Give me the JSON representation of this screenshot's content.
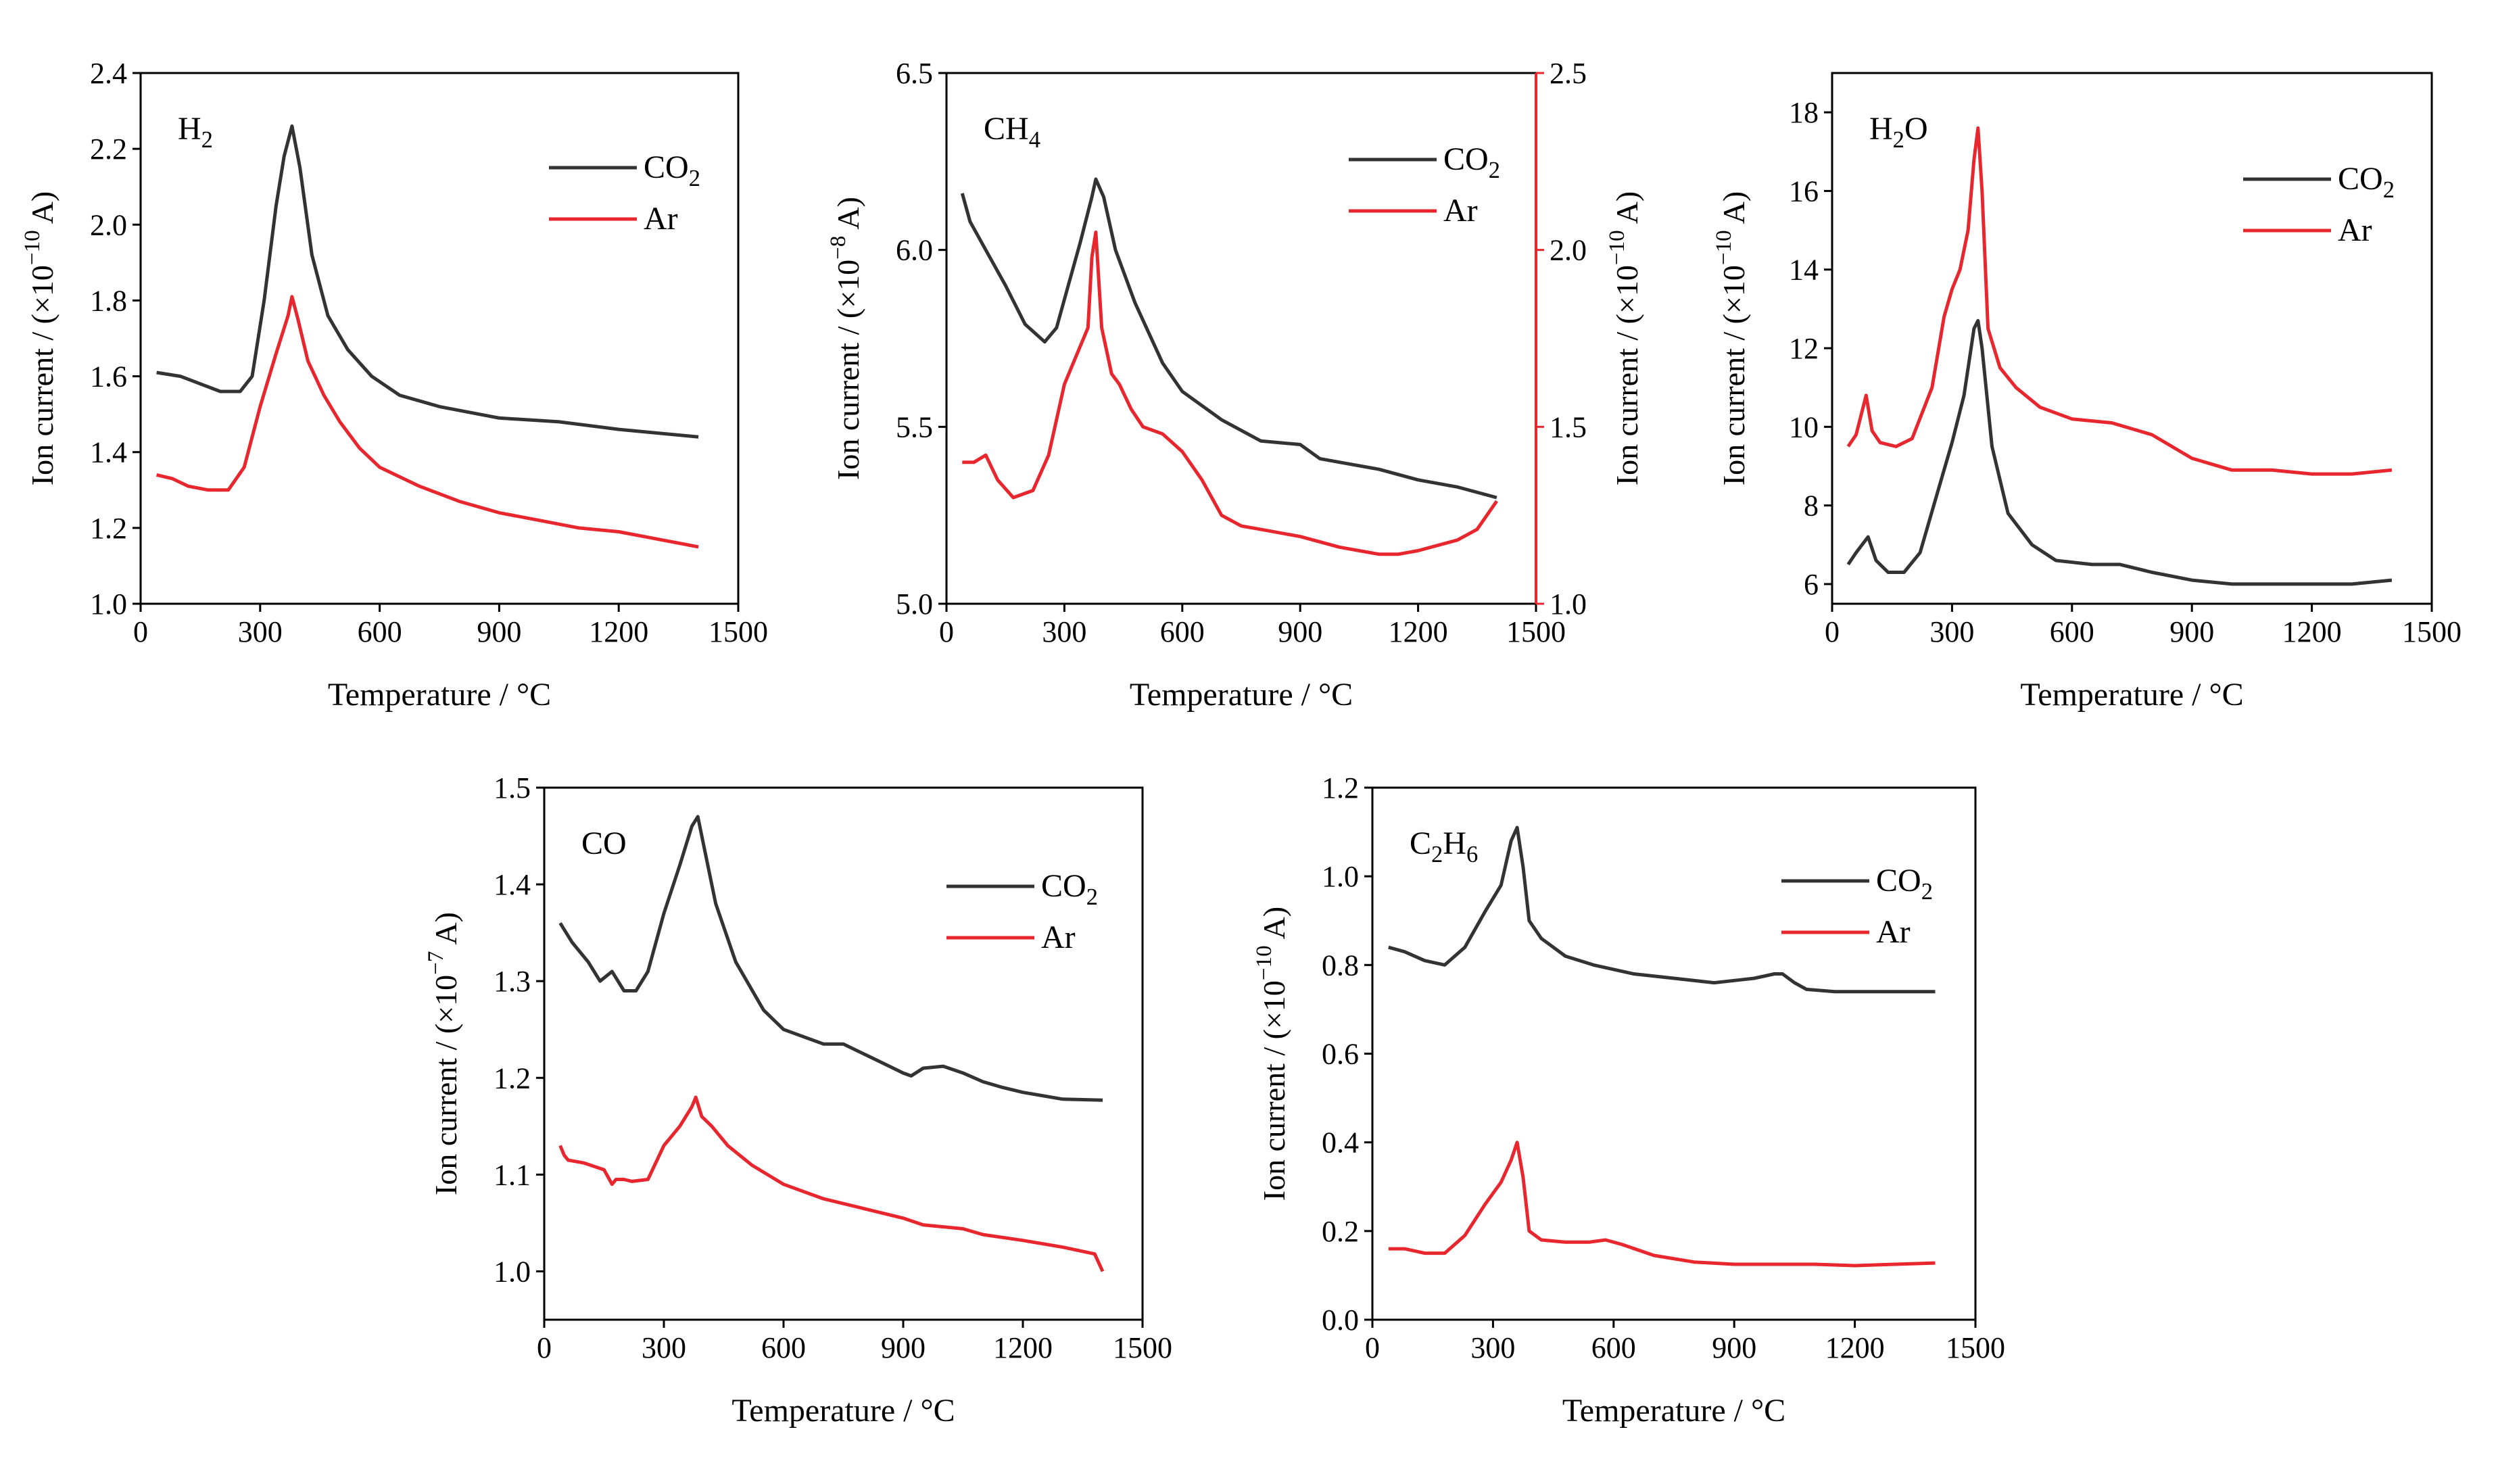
{
  "figure": {
    "xlabel": "Temperature / °C",
    "legend_labels": [
      "CO2",
      "Ar"
    ],
    "colors": {
      "co2": "#333333",
      "ar": "#e8262d",
      "axis": "#000000"
    }
  },
  "chart_data": [
    {
      "type": "line",
      "annotation": "H2",
      "xlabel": "Temperature / °C",
      "ylabel": "Ion current / (×10^-10 A)",
      "xlim": [
        0,
        1500
      ],
      "ylim": [
        1.0,
        2.4
      ],
      "xticks": [
        0,
        300,
        600,
        900,
        1200,
        1500
      ],
      "yticks": [
        1.0,
        1.2,
        1.4,
        1.6,
        1.8,
        2.0,
        2.2,
        2.4
      ],
      "legend": "top-right",
      "series": [
        {
          "name": "CO2",
          "x": [
            40,
            100,
            150,
            200,
            250,
            280,
            310,
            340,
            360,
            380,
            400,
            430,
            470,
            520,
            580,
            650,
            750,
            900,
            1050,
            1200,
            1400
          ],
          "y": [
            1.61,
            1.6,
            1.58,
            1.56,
            1.56,
            1.6,
            1.8,
            2.05,
            2.18,
            2.26,
            2.15,
            1.92,
            1.76,
            1.67,
            1.6,
            1.55,
            1.52,
            1.49,
            1.48,
            1.46,
            1.44
          ]
        },
        {
          "name": "Ar",
          "x": [
            40,
            80,
            120,
            170,
            220,
            260,
            300,
            340,
            370,
            380,
            395,
            420,
            460,
            500,
            550,
            600,
            700,
            800,
            900,
            1000,
            1100,
            1200,
            1300,
            1400
          ],
          "y": [
            1.34,
            1.33,
            1.31,
            1.3,
            1.3,
            1.36,
            1.52,
            1.66,
            1.76,
            1.81,
            1.75,
            1.64,
            1.55,
            1.48,
            1.41,
            1.36,
            1.31,
            1.27,
            1.24,
            1.22,
            1.2,
            1.19,
            1.17,
            1.15
          ]
        }
      ]
    },
    {
      "type": "line",
      "annotation": "CH4",
      "xlabel": "Temperature / °C",
      "ylabel": "Ion current / (×10^-8 A)",
      "y2label": "Ion current / (×10^-10 A)",
      "xlim": [
        0,
        1500
      ],
      "ylim": [
        5.0,
        6.5
      ],
      "y2lim": [
        1.0,
        2.5
      ],
      "xticks": [
        0,
        300,
        600,
        900,
        1200,
        1500
      ],
      "yticks": [
        5.0,
        5.5,
        6.0,
        6.5
      ],
      "y2ticks": [
        1.0,
        1.5,
        2.0,
        2.5
      ],
      "legend": "top-right",
      "series": [
        {
          "name": "CO2",
          "axis": "left",
          "x": [
            40,
            60,
            100,
            150,
            200,
            250,
            280,
            310,
            340,
            370,
            380,
            400,
            430,
            480,
            550,
            600,
            700,
            800,
            900,
            950,
            1000,
            1100,
            1200,
            1300,
            1400
          ],
          "y": [
            6.16,
            6.08,
            6.0,
            5.9,
            5.79,
            5.74,
            5.78,
            5.9,
            6.02,
            6.15,
            6.2,
            6.15,
            6.0,
            5.85,
            5.68,
            5.6,
            5.52,
            5.46,
            5.45,
            5.41,
            5.4,
            5.38,
            5.35,
            5.33,
            5.3
          ]
        },
        {
          "name": "Ar",
          "axis": "right",
          "x": [
            40,
            70,
            100,
            130,
            170,
            220,
            260,
            300,
            330,
            360,
            370,
            380,
            395,
            420,
            440,
            470,
            500,
            550,
            600,
            650,
            700,
            750,
            800,
            900,
            1000,
            1100,
            1150,
            1200,
            1300,
            1350,
            1400
          ],
          "y": [
            1.4,
            1.4,
            1.42,
            1.35,
            1.3,
            1.32,
            1.42,
            1.62,
            1.7,
            1.78,
            1.98,
            2.05,
            1.78,
            1.65,
            1.62,
            1.55,
            1.5,
            1.48,
            1.43,
            1.35,
            1.25,
            1.22,
            1.21,
            1.19,
            1.16,
            1.14,
            1.14,
            1.15,
            1.18,
            1.21,
            1.29
          ]
        }
      ]
    },
    {
      "type": "line",
      "annotation": "H2O",
      "xlabel": "Temperature / °C",
      "ylabel": "Ion current / (×10^-10 A)",
      "xlim": [
        0,
        1500
      ],
      "ylim": [
        5.5,
        19
      ],
      "xticks": [
        0,
        300,
        600,
        900,
        1200,
        1500
      ],
      "yticks": [
        6,
        8,
        10,
        12,
        14,
        16,
        18
      ],
      "legend": "top-right",
      "series": [
        {
          "name": "CO2",
          "x": [
            40,
            60,
            90,
            110,
            140,
            180,
            220,
            260,
            300,
            330,
            355,
            365,
            375,
            400,
            440,
            500,
            560,
            650,
            720,
            800,
            900,
            1000,
            1100,
            1200,
            1300,
            1400
          ],
          "y": [
            6.5,
            6.8,
            7.2,
            6.6,
            6.3,
            6.3,
            6.8,
            8.2,
            9.6,
            10.8,
            12.5,
            12.7,
            12.0,
            9.5,
            7.8,
            7.0,
            6.6,
            6.5,
            6.5,
            6.3,
            6.1,
            6.0,
            6.0,
            6.0,
            6.0,
            6.1
          ]
        },
        {
          "name": "Ar",
          "x": [
            40,
            60,
            85,
            100,
            120,
            160,
            200,
            250,
            280,
            300,
            320,
            340,
            355,
            365,
            375,
            390,
            420,
            460,
            520,
            600,
            700,
            800,
            900,
            1000,
            1100,
            1200,
            1300,
            1400
          ],
          "y": [
            9.5,
            9.8,
            10.8,
            9.9,
            9.6,
            9.5,
            9.7,
            11.0,
            12.8,
            13.5,
            14.0,
            15.0,
            16.8,
            17.6,
            16.0,
            12.5,
            11.5,
            11.0,
            10.5,
            10.2,
            10.1,
            9.8,
            9.2,
            8.9,
            8.9,
            8.8,
            8.8,
            8.9
          ]
        }
      ]
    },
    {
      "type": "line",
      "annotation": "CO",
      "xlabel": "Temperature / °C",
      "ylabel": "Ion current / (×10^-7 A)",
      "xlim": [
        0,
        1500
      ],
      "ylim": [
        0.95,
        1.5
      ],
      "xticks": [
        0,
        300,
        600,
        900,
        1200,
        1500
      ],
      "yticks": [
        1.0,
        1.1,
        1.2,
        1.3,
        1.4,
        1.5
      ],
      "legend": "top-right",
      "series": [
        {
          "name": "CO2",
          "x": [
            40,
            70,
            110,
            140,
            170,
            200,
            230,
            260,
            300,
            340,
            370,
            385,
            400,
            430,
            480,
            550,
            600,
            700,
            750,
            800,
            850,
            900,
            920,
            950,
            1000,
            1050,
            1100,
            1150,
            1200,
            1300,
            1400
          ],
          "y": [
            1.36,
            1.34,
            1.32,
            1.3,
            1.31,
            1.29,
            1.29,
            1.31,
            1.37,
            1.42,
            1.46,
            1.47,
            1.44,
            1.38,
            1.32,
            1.27,
            1.25,
            1.235,
            1.235,
            1.225,
            1.215,
            1.205,
            1.202,
            1.21,
            1.212,
            1.205,
            1.196,
            1.19,
            1.185,
            1.178,
            1.177
          ]
        },
        {
          "name": "Ar",
          "x": [
            40,
            50,
            60,
            100,
            150,
            170,
            180,
            200,
            220,
            260,
            300,
            340,
            370,
            380,
            395,
            420,
            460,
            520,
            600,
            700,
            800,
            900,
            950,
            1000,
            1050,
            1100,
            1200,
            1300,
            1380,
            1400
          ],
          "y": [
            1.13,
            1.12,
            1.115,
            1.112,
            1.105,
            1.09,
            1.095,
            1.095,
            1.093,
            1.095,
            1.13,
            1.15,
            1.17,
            1.18,
            1.16,
            1.15,
            1.13,
            1.11,
            1.09,
            1.075,
            1.065,
            1.055,
            1.048,
            1.046,
            1.044,
            1.038,
            1.032,
            1.025,
            1.018,
            1.0
          ]
        }
      ]
    },
    {
      "type": "line",
      "annotation": "C2H6",
      "xlabel": "Temperature / °C",
      "ylabel": "Ion current / (×10^-10 A)",
      "xlim": [
        0,
        1500
      ],
      "ylim": [
        0.0,
        1.2
      ],
      "xticks": [
        0,
        300,
        600,
        900,
        1200,
        1500
      ],
      "yticks": [
        0.0,
        0.2,
        0.4,
        0.6,
        0.8,
        1.0,
        1.2
      ],
      "legend": "top-right",
      "series": [
        {
          "name": "CO2",
          "x": [
            40,
            80,
            130,
            180,
            230,
            280,
            320,
            345,
            360,
            375,
            390,
            420,
            480,
            550,
            650,
            750,
            850,
            900,
            950,
            1000,
            1020,
            1050,
            1080,
            1150,
            1250,
            1400
          ],
          "y": [
            0.84,
            0.83,
            0.81,
            0.8,
            0.84,
            0.92,
            0.98,
            1.08,
            1.11,
            1.02,
            0.9,
            0.86,
            0.82,
            0.8,
            0.78,
            0.77,
            0.76,
            0.765,
            0.77,
            0.78,
            0.78,
            0.76,
            0.745,
            0.74,
            0.74,
            0.74
          ]
        },
        {
          "name": "Ar",
          "x": [
            40,
            80,
            130,
            180,
            230,
            280,
            320,
            345,
            360,
            375,
            390,
            420,
            480,
            540,
            580,
            620,
            700,
            800,
            900,
            1000,
            1100,
            1200,
            1300,
            1400
          ],
          "y": [
            0.16,
            0.16,
            0.15,
            0.15,
            0.19,
            0.26,
            0.31,
            0.36,
            0.4,
            0.32,
            0.2,
            0.18,
            0.175,
            0.175,
            0.18,
            0.17,
            0.145,
            0.13,
            0.125,
            0.125,
            0.125,
            0.122,
            0.125,
            0.128
          ]
        }
      ]
    }
  ]
}
